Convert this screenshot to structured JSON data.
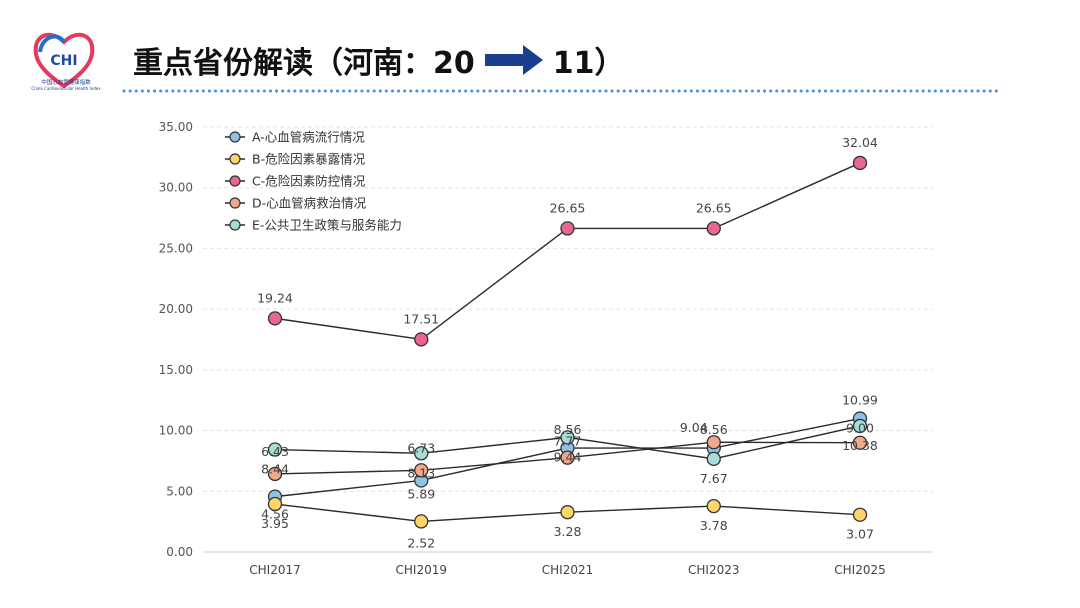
{
  "header": {
    "logo_text": "CHI",
    "logo_tagline": "中国心血管健康指数",
    "logo_subtagline": "China Cardiovascular Health Index",
    "title_prefix": "重点省份解读（河南：20",
    "title_suffix": "11）",
    "accent_color": "#1f4aa8",
    "arrow_color": "#1b3f8f"
  },
  "chart_data": {
    "type": "line",
    "categories": [
      "CHI2017",
      "CHI2019",
      "CHI2021",
      "CHI2023",
      "CHI2025"
    ],
    "ylim": [
      0,
      35
    ],
    "yticks": [
      "0.00",
      "5.00",
      "10.00",
      "15.00",
      "20.00",
      "25.00",
      "30.00",
      "35.00"
    ],
    "grid": true,
    "legend_position": "top-left",
    "series": [
      {
        "name": "A-心血管病流行情况",
        "color": "#8dc3e6",
        "values": [
          4.56,
          5.89,
          8.56,
          8.56,
          10.99
        ],
        "labels": [
          "4.56",
          "5.89",
          "8.56",
          "8.56",
          "10.99"
        ]
      },
      {
        "name": "B-危险因素暴露情况",
        "color": "#fdd56a",
        "values": [
          3.95,
          2.52,
          3.28,
          3.78,
          3.07
        ],
        "labels": [
          "3.95",
          "2.52",
          "3.28",
          "3.78",
          "3.07"
        ]
      },
      {
        "name": "C-危险因素防控情况",
        "color": "#e9668f",
        "values": [
          19.24,
          17.51,
          26.65,
          26.65,
          32.04
        ],
        "labels": [
          "19.24",
          "17.51",
          "26.65",
          "26.65",
          "32.04"
        ]
      },
      {
        "name": "D-心血管病救治情况",
        "color": "#f0a98a",
        "values": [
          6.43,
          6.73,
          7.77,
          9.04,
          9.0
        ],
        "labels": [
          "6.43",
          "6.73",
          "7.77",
          "9.04",
          "9.00"
        ]
      },
      {
        "name": "E-公共卫生政策与服务能力",
        "color": "#a8dcd6",
        "values": [
          8.44,
          8.13,
          9.44,
          7.67,
          10.38
        ],
        "labels": [
          "8.44",
          "8.13",
          "9.44",
          "7.67",
          "10.38"
        ]
      }
    ]
  }
}
